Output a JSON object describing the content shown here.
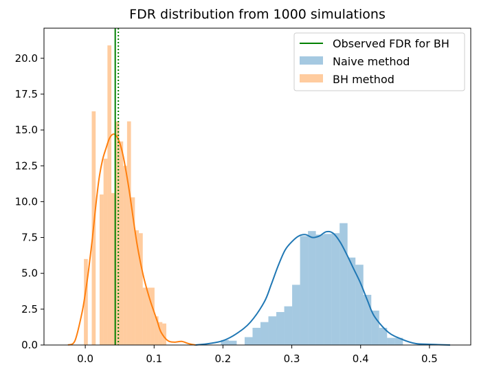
{
  "chart_data": {
    "type": "histogram",
    "title": "FDR distribution from 1000 simulations",
    "xlabel": "",
    "ylabel": "",
    "xlim": [
      -0.06,
      0.56
    ],
    "ylim": [
      0,
      22.1
    ],
    "xticks": [
      0.0,
      0.1,
      0.2,
      0.3,
      0.4,
      0.5
    ],
    "xtick_labels": [
      "0.0",
      "0.1",
      "0.2",
      "0.3",
      "0.4",
      "0.5"
    ],
    "yticks": [
      0.0,
      2.5,
      5.0,
      7.5,
      10.0,
      12.5,
      15.0,
      17.5,
      20.0
    ],
    "ytick_labels": [
      "0.0",
      "2.5",
      "5.0",
      "7.5",
      "10.0",
      "12.5",
      "15.0",
      "17.5",
      "20.0"
    ],
    "legend_position": "top-right",
    "legend": [
      {
        "label": "Observed FDR for BH",
        "kind": "line",
        "color": "#008000"
      },
      {
        "label": "Naive method",
        "kind": "patch",
        "color": "#1f77b4"
      },
      {
        "label": "BH method",
        "kind": "patch",
        "color": "#ff7f0e"
      }
    ],
    "series": [
      {
        "name": "Naive method",
        "color": "#1f77b4",
        "bar_alpha": 0.4,
        "bin_start": 0.197,
        "bin_width": 0.0115,
        "histogram": [
          0.35,
          0.3,
          0.0,
          0.55,
          1.2,
          1.6,
          2.0,
          2.3,
          2.7,
          4.2,
          7.6,
          7.95,
          7.7,
          7.75,
          7.8,
          8.5,
          6.1,
          5.6,
          3.5,
          2.4,
          1.2,
          0.5,
          0.5
        ],
        "kde_x": [
          0.16,
          0.18,
          0.2,
          0.22,
          0.24,
          0.26,
          0.27,
          0.28,
          0.29,
          0.3,
          0.31,
          0.32,
          0.33,
          0.34,
          0.35,
          0.36,
          0.37,
          0.38,
          0.39,
          0.4,
          0.41,
          0.42,
          0.44,
          0.46,
          0.48,
          0.5,
          0.53
        ],
        "kde_y": [
          0.0,
          0.1,
          0.3,
          0.8,
          1.6,
          3.0,
          4.2,
          5.5,
          6.6,
          7.2,
          7.6,
          7.7,
          7.5,
          7.6,
          7.9,
          7.8,
          7.2,
          6.3,
          5.3,
          4.3,
          3.1,
          2.0,
          0.9,
          0.4,
          0.1,
          0.05,
          0.0
        ]
      },
      {
        "name": "BH method",
        "color": "#ff7f0e",
        "bar_alpha": 0.4,
        "bin_start": -0.002,
        "bin_width": 0.0057,
        "histogram": [
          6.0,
          0.0,
          16.3,
          0.0,
          10.5,
          13.0,
          20.9,
          10.6,
          15.6,
          14.2,
          12.5,
          15.6,
          10.3,
          8.0,
          7.8,
          4.0,
          4.0,
          4.0,
          2.0,
          1.6,
          1.5
        ],
        "kde_x": [
          -0.025,
          -0.015,
          -0.005,
          0.0,
          0.005,
          0.01,
          0.015,
          0.02,
          0.025,
          0.03,
          0.035,
          0.04,
          0.045,
          0.05,
          0.055,
          0.06,
          0.065,
          0.07,
          0.075,
          0.08,
          0.085,
          0.09,
          0.095,
          0.1,
          0.105,
          0.11,
          0.12,
          0.13,
          0.14,
          0.15,
          0.16
        ],
        "kde_y": [
          0.0,
          0.3,
          2.2,
          3.6,
          5.3,
          7.3,
          9.6,
          11.6,
          12.9,
          13.7,
          14.4,
          14.7,
          14.6,
          14.1,
          13.2,
          11.9,
          10.4,
          8.7,
          7.1,
          5.8,
          4.7,
          3.8,
          3.0,
          2.3,
          1.6,
          0.9,
          0.3,
          0.2,
          0.25,
          0.1,
          0.0
        ]
      }
    ],
    "vlines": [
      {
        "name": "Observed FDR for BH",
        "x": 0.0435,
        "style": "solid",
        "color": "#008000"
      },
      {
        "name": "dotted reference",
        "x": 0.048,
        "style": "dotted",
        "color": "#008000"
      }
    ]
  }
}
